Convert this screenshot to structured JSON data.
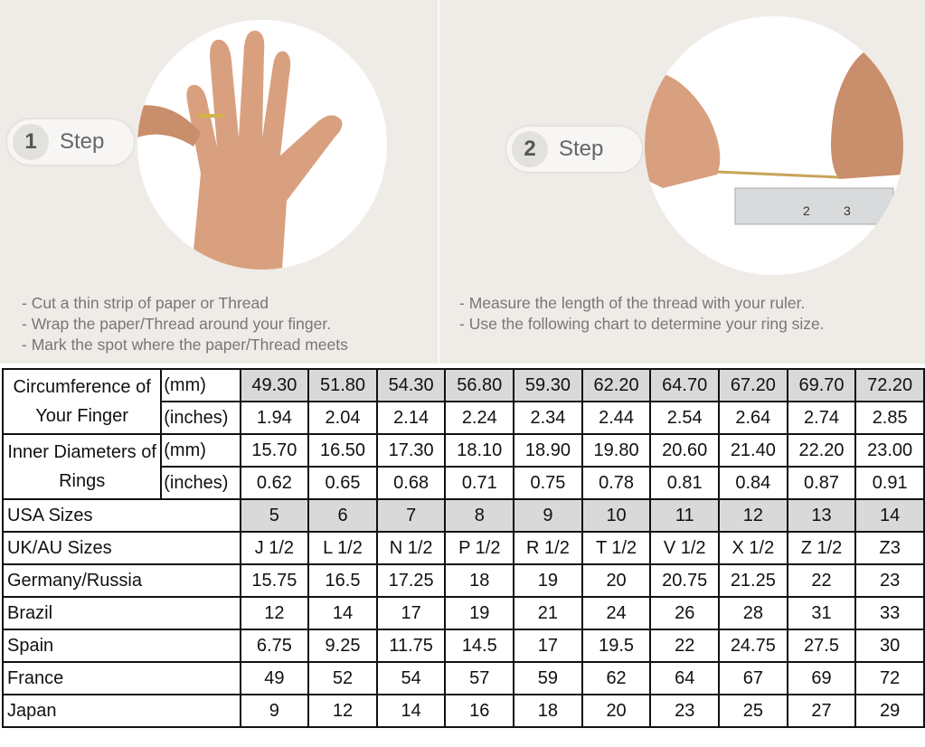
{
  "steps": [
    {
      "number": "1",
      "label": "Step",
      "instructions": [
        "- Cut a thin strip of paper or Thread",
        "- Wrap the paper/Thread around your finger.",
        "- Mark the spot where the paper/Thread meets"
      ]
    },
    {
      "number": "2",
      "label": "Step",
      "instructions": [
        "- Measure the length of the thread with your ruler.",
        "- Use the following chart to determine your ring size."
      ]
    }
  ],
  "table": {
    "circumference": {
      "label": "Circumference of Your Finger",
      "mm_unit": "(mm)",
      "in_unit": "(inches)",
      "mm": [
        "49.30",
        "51.80",
        "54.30",
        "56.80",
        "59.30",
        "62.20",
        "64.70",
        "67.20",
        "69.70",
        "72.20"
      ],
      "in": [
        "1.94",
        "2.04",
        "2.14",
        "2.24",
        "2.34",
        "2.44",
        "2.54",
        "2.64",
        "2.74",
        "2.85"
      ]
    },
    "inner_diameter": {
      "label": "Inner Diameters of Rings",
      "mm_unit": "(mm)",
      "in_unit": "(inches)",
      "mm": [
        "15.70",
        "16.50",
        "17.30",
        "18.10",
        "18.90",
        "19.80",
        "20.60",
        "21.40",
        "22.20",
        "23.00"
      ],
      "in": [
        "0.62",
        "0.65",
        "0.68",
        "0.71",
        "0.75",
        "0.78",
        "0.81",
        "0.84",
        "0.87",
        "0.91"
      ]
    },
    "rows": [
      {
        "label": "USA Sizes",
        "values": [
          "5",
          "6",
          "7",
          "8",
          "9",
          "10",
          "11",
          "12",
          "13",
          "14"
        ]
      },
      {
        "label": "UK/AU Sizes",
        "values": [
          "J 1/2",
          "L 1/2",
          "N 1/2",
          "P 1/2",
          "R 1/2",
          "T 1/2",
          "V 1/2",
          "X 1/2",
          "Z 1/2",
          "Z3"
        ]
      },
      {
        "label": "Germany/Russia",
        "values": [
          "15.75",
          "16.5",
          "17.25",
          "18",
          "19",
          "20",
          "20.75",
          "21.25",
          "22",
          "23"
        ]
      },
      {
        "label": "Brazil",
        "values": [
          "12",
          "14",
          "17",
          "19",
          "21",
          "24",
          "26",
          "28",
          "31",
          "33"
        ]
      },
      {
        "label": "Spain",
        "values": [
          "6.75",
          "9.25",
          "11.75",
          "14.5",
          "17",
          "19.5",
          "22",
          "24.75",
          "27.5",
          "30"
        ]
      },
      {
        "label": "France",
        "values": [
          "49",
          "52",
          "54",
          "57",
          "59",
          "62",
          "64",
          "67",
          "69",
          "72"
        ]
      },
      {
        "label": "Japan",
        "values": [
          "9",
          "12",
          "14",
          "16",
          "18",
          "20",
          "23",
          "25",
          "27",
          "29"
        ]
      }
    ]
  },
  "colors": {
    "background": "#efece8",
    "header_shade": "#d9d9d9",
    "text": "#777777"
  }
}
